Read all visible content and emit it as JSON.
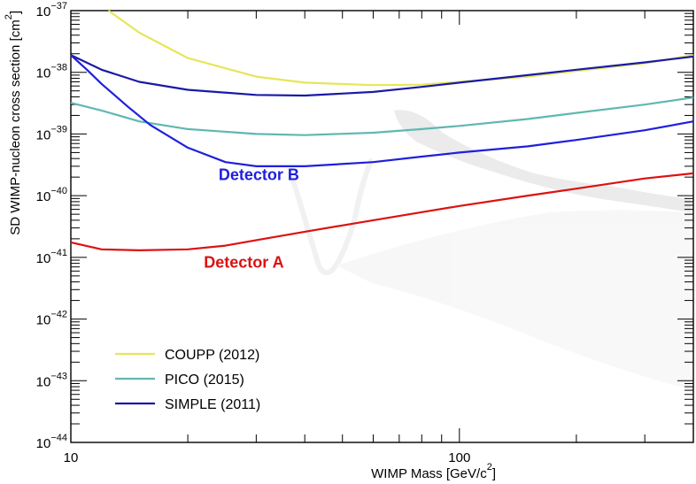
{
  "chart_data": {
    "type": "line",
    "title": "",
    "xlabel": "WIMP Mass [GeV/c",
    "xlabel_sup": "2",
    "xlabel_close": "]",
    "ylabel": "SD WIMP-nucleon cross section [cm",
    "ylabel_sup": "2",
    "ylabel_close": "]",
    "x_scale": "log",
    "y_scale": "log",
    "xlim": [
      10,
      400
    ],
    "ylim": [
      1e-44,
      1e-37
    ],
    "x_ticks": [
      {
        "value": 10,
        "label": "10"
      },
      {
        "value": 100,
        "label": "100"
      }
    ],
    "y_ticks": [
      {
        "value": 1e-44,
        "base": "10",
        "exp": "−44"
      },
      {
        "value": 1e-43,
        "base": "10",
        "exp": "−43"
      },
      {
        "value": 1e-42,
        "base": "10",
        "exp": "−42"
      },
      {
        "value": 1e-41,
        "base": "10",
        "exp": "−41"
      },
      {
        "value": 1e-40,
        "base": "10",
        "exp": "−40"
      },
      {
        "value": 1e-39,
        "base": "10",
        "exp": "−39"
      },
      {
        "value": 1e-38,
        "base": "10",
        "exp": "−38"
      },
      {
        "value": 1e-37,
        "base": "10",
        "exp": "−37"
      }
    ],
    "legend_position": "bottom-left",
    "series": [
      {
        "name": "COUPP (2012)",
        "color": "#e6e65a",
        "in_legend": true,
        "points": [
          [
            12.5,
            1e-37
          ],
          [
            15,
            4.4e-38
          ],
          [
            20,
            1.7e-38
          ],
          [
            30,
            8.5e-39
          ],
          [
            40,
            6.8e-39
          ],
          [
            60,
            6.2e-39
          ],
          [
            80,
            6.3e-39
          ],
          [
            100,
            7e-39
          ],
          [
            150,
            8.5e-39
          ],
          [
            200,
            1.05e-38
          ],
          [
            300,
            1.4e-38
          ],
          [
            400,
            1.9e-38
          ]
        ]
      },
      {
        "name": "PICO (2015)",
        "color": "#5fb8b0",
        "in_legend": true,
        "points": [
          [
            10,
            3.2e-39
          ],
          [
            12,
            2.4e-39
          ],
          [
            15,
            1.6e-39
          ],
          [
            20,
            1.2e-39
          ],
          [
            30,
            1e-39
          ],
          [
            40,
            9.6e-40
          ],
          [
            60,
            1.05e-39
          ],
          [
            80,
            1.2e-39
          ],
          [
            100,
            1.35e-39
          ],
          [
            150,
            1.75e-39
          ],
          [
            200,
            2.2e-39
          ],
          [
            300,
            3e-39
          ],
          [
            400,
            3.9e-39
          ]
        ]
      },
      {
        "name": "SIMPLE (2011)",
        "color": "#1a1aa6",
        "in_legend": true,
        "points": [
          [
            10,
            1.9e-38
          ],
          [
            12,
            1.1e-38
          ],
          [
            15,
            7e-39
          ],
          [
            20,
            5.2e-39
          ],
          [
            30,
            4.3e-39
          ],
          [
            40,
            4.2e-39
          ],
          [
            60,
            4.8e-39
          ],
          [
            80,
            5.8e-39
          ],
          [
            100,
            6.8e-39
          ],
          [
            150,
            9e-39
          ],
          [
            200,
            1.1e-38
          ],
          [
            300,
            1.45e-38
          ],
          [
            400,
            1.8e-38
          ]
        ]
      },
      {
        "name": "Detector B",
        "color": "#1f1fdd",
        "in_legend": false,
        "points": [
          [
            10,
            1.9e-38
          ],
          [
            11,
            1.1e-38
          ],
          [
            12,
            6.5e-39
          ],
          [
            14,
            2.8e-39
          ],
          [
            16,
            1.4e-39
          ],
          [
            20,
            6e-40
          ],
          [
            25,
            3.5e-40
          ],
          [
            30,
            3e-40
          ],
          [
            40,
            3e-40
          ],
          [
            60,
            3.5e-40
          ],
          [
            80,
            4.3e-40
          ],
          [
            100,
            5e-40
          ],
          [
            150,
            6.3e-40
          ],
          [
            200,
            8e-40
          ],
          [
            300,
            1.15e-39
          ],
          [
            400,
            1.6e-39
          ]
        ]
      },
      {
        "name": "Detector A",
        "color": "#dd1111",
        "in_legend": false,
        "points": [
          [
            10,
            1.75e-41
          ],
          [
            12,
            1.35e-41
          ],
          [
            15,
            1.3e-41
          ],
          [
            20,
            1.35e-41
          ],
          [
            25,
            1.55e-41
          ],
          [
            30,
            1.9e-41
          ],
          [
            40,
            2.6e-41
          ],
          [
            60,
            4e-41
          ],
          [
            80,
            5.4e-41
          ],
          [
            100,
            6.8e-41
          ],
          [
            150,
            1e-40
          ],
          [
            200,
            1.3e-40
          ],
          [
            300,
            1.9e-40
          ],
          [
            400,
            2.3e-40
          ]
        ]
      }
    ],
    "annotations": [
      {
        "text": "Detector B",
        "color": "#1f1fdd",
        "x": 24,
        "y": 1.8e-40
      },
      {
        "text": "Detector A",
        "color": "#dd1111",
        "x": 22,
        "y": 6.8e-42
      }
    ]
  }
}
